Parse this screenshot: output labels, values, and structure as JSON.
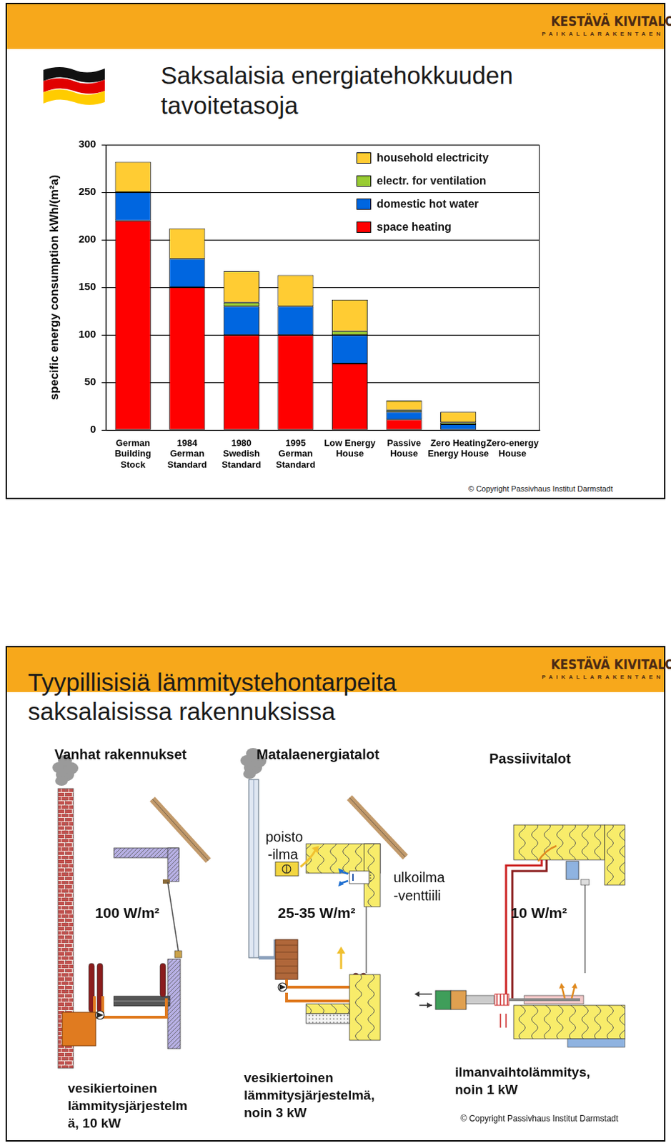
{
  "logo": {
    "name": "KESTÄVÄ KIVITALO",
    "tagline": "PAIKALLARAKENTAEN"
  },
  "chart_data": {
    "type": "bar",
    "stacked": true,
    "title": [
      "Saksalaisia energiatehokkuuden",
      "tavoitetasoja"
    ],
    "y_label": "specific energy consumption kWh/(m²a)",
    "categories": [
      [
        "German",
        "Building",
        "Stock"
      ],
      [
        "1984",
        "German",
        "Standard"
      ],
      [
        "1980",
        "Swedish",
        "Standard"
      ],
      [
        "1995",
        "German",
        "Standard"
      ],
      [
        "Low Energy",
        "House"
      ],
      [
        "Passive",
        "House"
      ],
      [
        "Zero Heating",
        "Energy House"
      ],
      [
        "Zero-energy",
        "House"
      ]
    ],
    "series": [
      {
        "name": "space heating",
        "color": "#ff0000",
        "values": [
          220,
          150,
          100,
          100,
          70,
          11,
          0,
          0
        ]
      },
      {
        "name": "domestic hot water",
        "color": "#0066e0",
        "values": [
          30,
          30,
          30,
          30,
          30,
          8,
          6,
          0
        ]
      },
      {
        "name": "electr. for ventilation",
        "color": "#99cc33",
        "values": [
          0,
          0,
          4,
          0,
          4,
          2,
          2,
          0
        ]
      },
      {
        "name": "household electricity",
        "color": "#ffcc33",
        "values": [
          32,
          32,
          33,
          33,
          33,
          10,
          11,
          0
        ]
      }
    ],
    "ylim": [
      0,
      300
    ],
    "yticks": [
      0,
      50,
      100,
      150,
      200,
      250,
      300
    ],
    "grid": true,
    "legend": "upper right",
    "annotations": [
      "© Copyright Passivhaus Institut Darmstadt"
    ]
  },
  "slide2": {
    "title": [
      "Tyypillisisiä lämmitystehontarpeita",
      "saksalaisissa rakennuksissa"
    ],
    "columns": [
      {
        "heading": "Vanhat rakennukset",
        "power": "100 W/m²",
        "system": [
          "vesikiertoinen",
          "lämmitysjärjestelm",
          "ä, 10 kW"
        ]
      },
      {
        "heading": "Matalaenergiatalot",
        "power": "25-35 W/m²",
        "system": [
          "vesikiertoinen",
          "lämmitysjärjestelmä,",
          "noin 3 kW"
        ],
        "labels": [
          [
            "poisto",
            "-ilma"
          ],
          [
            "ulkoilma",
            "-venttiili"
          ]
        ]
      },
      {
        "heading": "Passiivitalot",
        "power": "10 W/m²",
        "system": [
          "ilmanvaihtolämmitys,",
          "noin 1 kW"
        ]
      }
    ],
    "copyright": "© Copyright Passivhaus Institut Darmstadt"
  }
}
